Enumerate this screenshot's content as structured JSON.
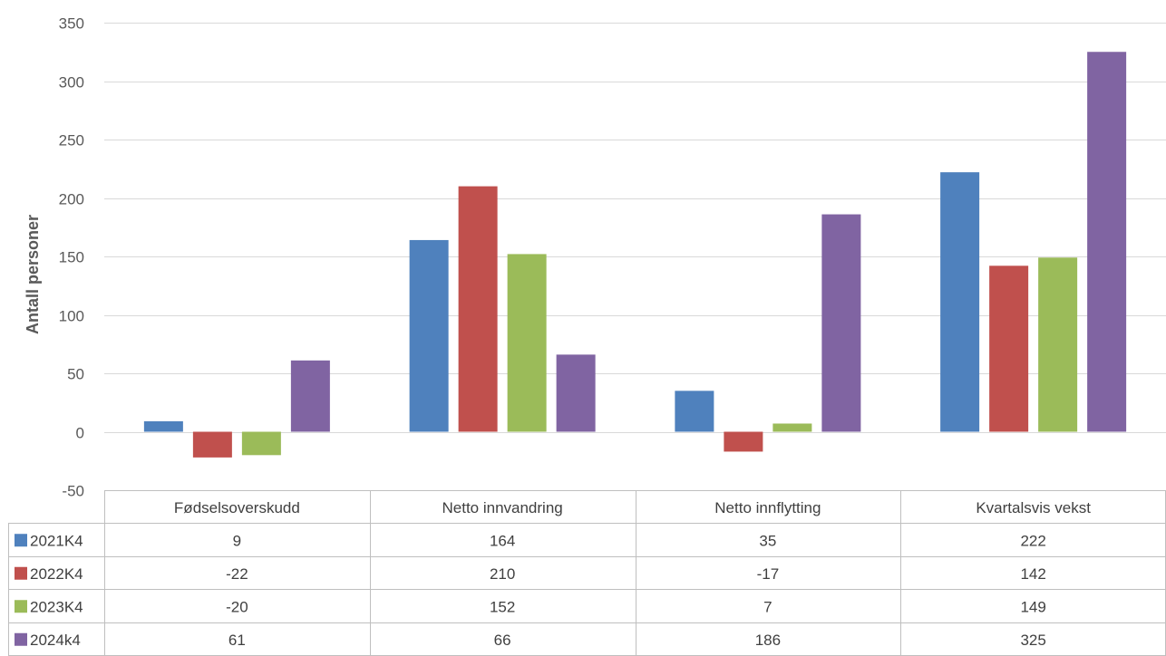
{
  "chart_data": {
    "type": "bar",
    "title": "",
    "xlabel": "",
    "ylabel": "Antall personer",
    "ylim": [
      -50,
      350
    ],
    "yticks": [
      -50,
      0,
      50,
      100,
      150,
      200,
      250,
      300,
      350
    ],
    "grid": true,
    "legend": "data table below chart",
    "categories": [
      "Fødselsoverskudd",
      "Netto innvandring",
      "Netto innflytting",
      "Kvartalsvis vekst"
    ],
    "series": [
      {
        "name": "2021K4",
        "color": "#4f81bd",
        "values": [
          9,
          164,
          35,
          222
        ]
      },
      {
        "name": "2022K4",
        "color": "#c0504d",
        "values": [
          -22,
          210,
          -17,
          142
        ]
      },
      {
        "name": "2023K4",
        "color": "#9bbb59",
        "values": [
          -20,
          152,
          7,
          149
        ]
      },
      {
        "name": "2024k4",
        "color": "#8064a2",
        "values": [
          61,
          66,
          186,
          325
        ]
      }
    ]
  }
}
